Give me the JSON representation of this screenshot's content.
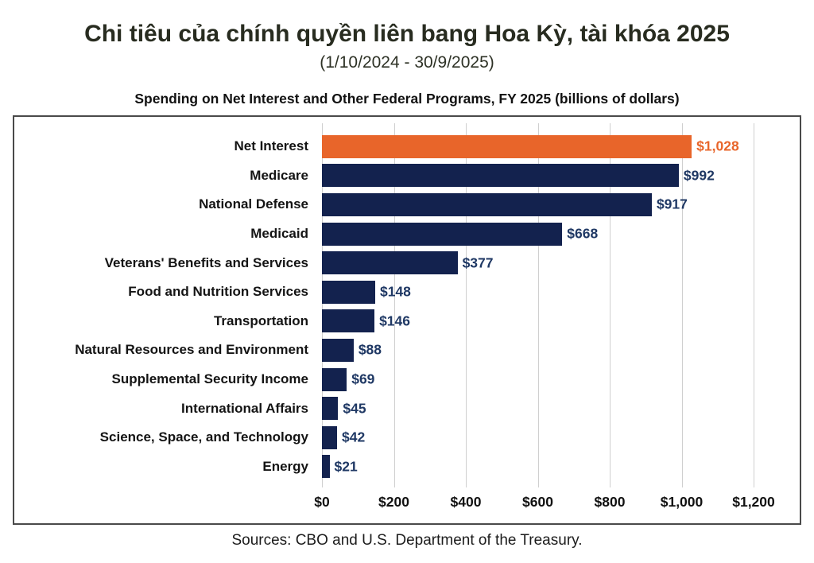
{
  "header": {
    "title": "Chi tiêu của chính quyền liên bang Hoa Kỳ, tài khóa 2025",
    "subtitle": "(1/10/2024 - 30/9/2025)"
  },
  "chart_data": {
    "type": "bar",
    "orientation": "horizontal",
    "title": "Spending on Net Interest and Other Federal Programs, FY 2025 (billions of dollars)",
    "categories": [
      "Net Interest",
      "Medicare",
      "National Defense",
      "Medicaid",
      "Veterans' Benefits and Services",
      "Food and Nutrition Services",
      "Transportation",
      "Natural Resources and Environment",
      "Supplemental Security Income",
      "International Affairs",
      "Science, Space, and Technology",
      "Energy"
    ],
    "values": [
      1028,
      992,
      917,
      668,
      377,
      148,
      146,
      88,
      69,
      45,
      42,
      21
    ],
    "value_labels": [
      "$1,028",
      "$992",
      "$917",
      "$668",
      "$377",
      "$148",
      "$146",
      "$88",
      "$69",
      "$45",
      "$42",
      "$21"
    ],
    "x_ticks": [
      "$0",
      "$200",
      "$400",
      "$600",
      "$800",
      "$1,000",
      "$1,200"
    ],
    "x_tick_values": [
      0,
      200,
      400,
      600,
      800,
      1000,
      1200
    ],
    "xlim": [
      0,
      1200
    ],
    "grid": "vertical",
    "legend": "none",
    "highlight_index": 0,
    "colors": {
      "highlight_bar": "#E8652A",
      "default_bar": "#13224E",
      "highlight_value": "#E8652A",
      "default_value": "#1F3864",
      "gridline": "#CFCFCF"
    }
  },
  "footer": {
    "source": "Sources: CBO and U.S. Department of the Treasury."
  }
}
